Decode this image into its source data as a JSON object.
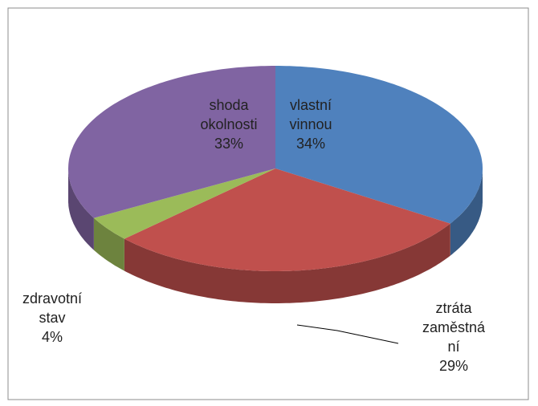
{
  "chart_data": {
    "type": "pie",
    "categories": [
      "vlastní vinnou",
      "ztráta zaměstnání",
      "zdravotní stav",
      "shoda okolnosti"
    ],
    "values": [
      34,
      29,
      4,
      33
    ],
    "value_labels": [
      "34%",
      "29%",
      "4%",
      "33%"
    ],
    "colors": [
      "#4f81bd",
      "#c0504d",
      "#9bbb59",
      "#8064a2"
    ]
  }
}
